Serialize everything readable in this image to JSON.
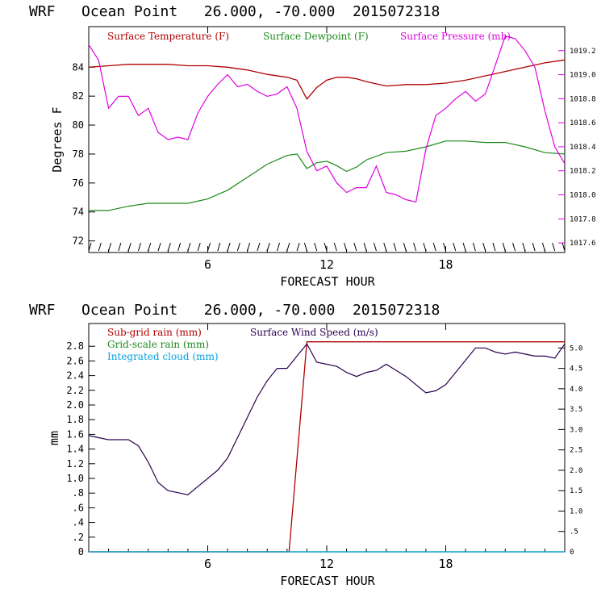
{
  "top_title": "WRF   Ocean Point   26.000, -70.000  2015072318",
  "bottom_title": "WRF   Ocean Point   26.000, -70.000  2015072318",
  "colors": {
    "temp": "#b00000",
    "dew": "#1a8a1a",
    "pres": "#e000e0",
    "subgrid": "#b00000",
    "gridscale": "#1a8a1a",
    "cloud": "#00a0e0",
    "wind": "#2a0050",
    "axis_pres": "#e000e0"
  },
  "chart_data": [
    {
      "type": "line",
      "title": "WRF   Ocean Point   26.000, -70.000  2015072318",
      "xlabel": "FORECAST HOUR",
      "ylabel": "Degrees F",
      "xlim": [
        0,
        24
      ],
      "xticks": [
        6,
        12,
        18
      ],
      "xtick_labels": [
        "6",
        "12",
        "18"
      ],
      "ylim": [
        71.2,
        86.8
      ],
      "yticks": [
        72,
        74,
        76,
        78,
        80,
        82,
        84
      ],
      "ytick_labels": [
        "72",
        "74",
        "76",
        "78",
        "80",
        "82",
        "84"
      ],
      "y2lim": [
        1017.52,
        1019.4
      ],
      "y2ticks": [
        1017.6,
        1017.8,
        1018.0,
        1018.2,
        1018.4,
        1018.6,
        1018.8,
        1019.0,
        1019.2
      ],
      "y2tick_labels": [
        "1017.6",
        "1017.8",
        "1018.0",
        "1018.2",
        "1018.4",
        "1018.6",
        "1018.8",
        "1019.0",
        "1019.2"
      ],
      "legend": [
        "Surface Temperature (F)",
        "Surface Dewpoint (F)",
        "Surface Pressure (mb)"
      ],
      "series": [
        {
          "name": "Surface Temperature (F)",
          "x": [
            0,
            1,
            2,
            3,
            4,
            5,
            6,
            7,
            8,
            9,
            10,
            10.5,
            11,
            11.5,
            12,
            12.5,
            13,
            13.5,
            14,
            15,
            16,
            17,
            18,
            19,
            20,
            21,
            22,
            23,
            24
          ],
          "values": [
            84.0,
            84.1,
            84.2,
            84.2,
            84.2,
            84.1,
            84.1,
            84.0,
            83.8,
            83.5,
            83.3,
            83.1,
            81.8,
            82.6,
            83.1,
            83.3,
            83.3,
            83.2,
            83.0,
            82.7,
            82.8,
            82.8,
            82.9,
            83.1,
            83.4,
            83.7,
            84.0,
            84.3,
            84.5
          ]
        },
        {
          "name": "Surface Dewpoint (F)",
          "x": [
            0,
            1,
            2,
            3,
            4,
            5,
            6,
            7,
            8,
            9,
            10,
            10.5,
            11,
            11.5,
            12,
            12.5,
            13,
            13.5,
            14,
            15,
            16,
            17,
            18,
            19,
            20,
            21,
            22,
            23,
            24
          ],
          "values": [
            74.1,
            74.1,
            74.4,
            74.6,
            74.6,
            74.6,
            74.9,
            75.5,
            76.4,
            77.3,
            77.9,
            78.0,
            77.0,
            77.4,
            77.5,
            77.2,
            76.8,
            77.1,
            77.6,
            78.1,
            78.2,
            78.5,
            78.9,
            78.9,
            78.8,
            78.8,
            78.5,
            78.1,
            78.0
          ]
        },
        {
          "name": "Surface Pressure (mb)",
          "x": [
            0,
            0.5,
            1,
            1.5,
            2,
            2.5,
            3,
            3.5,
            4,
            4.5,
            5,
            5.5,
            6,
            6.5,
            7,
            7.5,
            8,
            8.5,
            9,
            9.5,
            10,
            10.5,
            11,
            11.5,
            12,
            12.5,
            13,
            13.5,
            14,
            14.5,
            15,
            15.5,
            16,
            16.5,
            17,
            17.5,
            18,
            18.5,
            19,
            19.5,
            20,
            20.5,
            21,
            21.5,
            22,
            22.5,
            23,
            23.5,
            24
          ],
          "values": [
            1019.25,
            1019.12,
            1018.72,
            1018.82,
            1018.82,
            1018.66,
            1018.72,
            1018.52,
            1018.46,
            1018.48,
            1018.46,
            1018.68,
            1018.82,
            1018.92,
            1019.0,
            1018.9,
            1018.92,
            1018.86,
            1018.82,
            1018.84,
            1018.9,
            1018.72,
            1018.36,
            1018.2,
            1018.24,
            1018.1,
            1018.02,
            1018.06,
            1018.06,
            1018.24,
            1018.02,
            1018.0,
            1017.96,
            1017.94,
            1018.38,
            1018.66,
            1018.72,
            1018.8,
            1018.86,
            1018.78,
            1018.84,
            1019.08,
            1019.32,
            1019.3,
            1019.2,
            1019.06,
            1018.7,
            1018.4,
            1018.26
          ]
        }
      ]
    },
    {
      "type": "line",
      "title": "WRF   Ocean Point   26.000, -70.000  2015072318",
      "xlabel": "FORECAST HOUR",
      "ylabel": "mm",
      "xlim": [
        0,
        24
      ],
      "xticks": [
        6,
        12,
        18
      ],
      "xtick_labels": [
        "6",
        "12",
        "18"
      ],
      "ylim": [
        0,
        3.11
      ],
      "yticks": [
        0,
        0.2,
        0.4,
        0.6,
        0.8,
        1.0,
        1.2,
        1.4,
        1.6,
        1.8,
        2.0,
        2.2,
        2.4,
        2.6,
        2.8
      ],
      "ytick_labels": [
        "0",
        ".2",
        ".4",
        ".6",
        ".8",
        "1.0",
        "1.2",
        "1.4",
        "1.6",
        "1.8",
        "2.0",
        "2.2",
        "2.4",
        "2.6",
        "2.8"
      ],
      "y2lim": [
        0,
        5.6
      ],
      "y2ticks": [
        0,
        0.5,
        1.0,
        1.5,
        2.0,
        2.5,
        3.0,
        3.5,
        4.0,
        4.5,
        5.0
      ],
      "y2tick_labels": [
        "0",
        ".5",
        "1.0",
        "1.5",
        "2.0",
        "2.5",
        "3.0",
        "3.5",
        "4.0",
        "4.5",
        "5.0"
      ],
      "legend": [
        "Sub-grid rain (mm)",
        "Grid-scale rain (mm)",
        "Integrated cloud (mm)",
        "Surface Wind Speed (m/s)"
      ],
      "series": [
        {
          "name": "Sub-grid rain (mm)",
          "x": [
            0,
            10.1,
            11,
            24
          ],
          "values": [
            0,
            0,
            2.86,
            2.86
          ]
        },
        {
          "name": "Grid-scale rain (mm)",
          "x": [
            0,
            24
          ],
          "values": [
            0,
            0
          ]
        },
        {
          "name": "Integrated cloud (mm)",
          "x": [
            0,
            24
          ],
          "values": [
            0,
            0
          ]
        },
        {
          "name": "Surface Wind Speed (m/s)",
          "x": [
            0,
            0.5,
            1,
            1.5,
            2,
            2.5,
            3,
            3.5,
            4,
            4.5,
            5,
            5.5,
            6,
            6.5,
            7,
            7.5,
            8,
            8.5,
            9,
            9.5,
            10,
            10.5,
            11,
            11.5,
            12,
            12.5,
            13,
            13.5,
            14,
            14.5,
            15,
            15.5,
            16,
            16.5,
            17,
            17.5,
            18,
            18.5,
            19,
            19.5,
            20,
            20.5,
            21,
            21.5,
            22,
            22.5,
            23,
            23.5,
            24
          ],
          "values": [
            2.85,
            2.8,
            2.75,
            2.75,
            2.75,
            2.6,
            2.2,
            1.7,
            1.5,
            1.45,
            1.4,
            1.6,
            1.8,
            2.0,
            2.3,
            2.8,
            3.3,
            3.8,
            4.2,
            4.5,
            4.5,
            4.8,
            5.1,
            4.65,
            4.6,
            4.55,
            4.4,
            4.3,
            4.4,
            4.45,
            4.6,
            4.45,
            4.3,
            4.1,
            3.9,
            3.95,
            4.1,
            4.4,
            4.7,
            5.0,
            5.0,
            4.9,
            4.85,
            4.9,
            4.85,
            4.8,
            4.8,
            4.75,
            5.1
          ]
        }
      ]
    }
  ]
}
